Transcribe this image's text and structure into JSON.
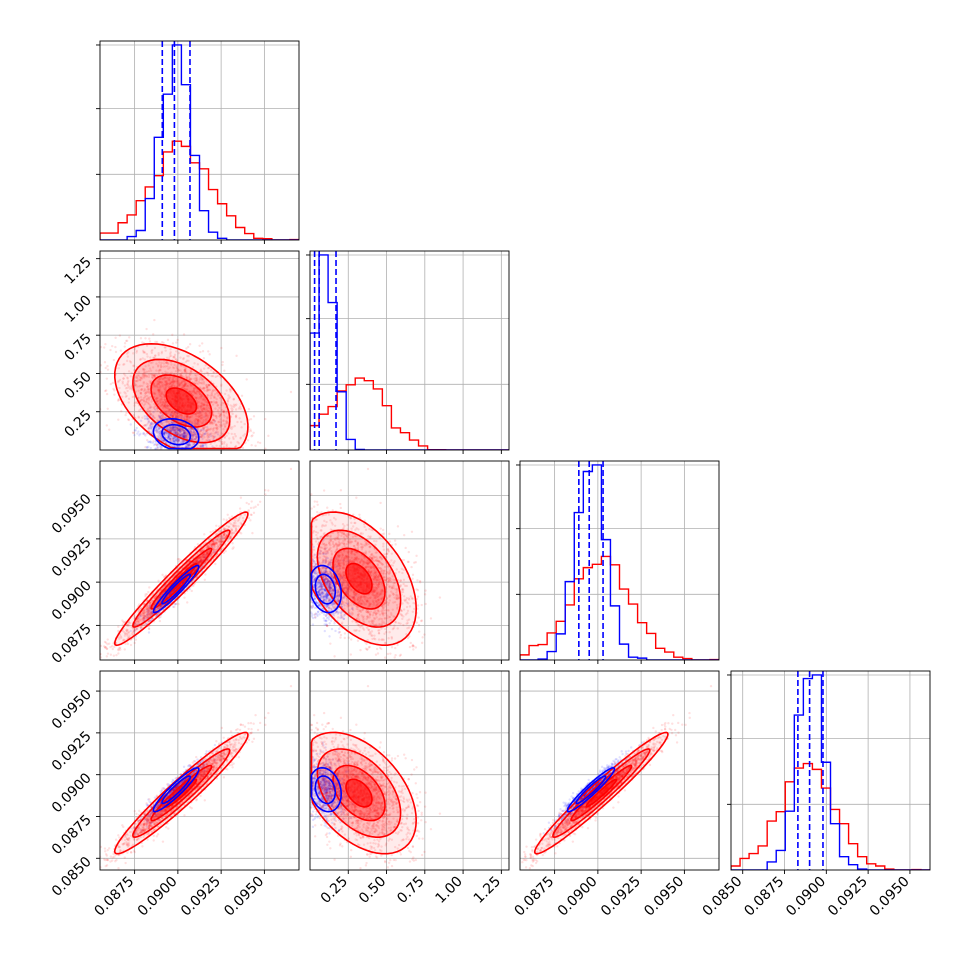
{
  "chart_data": {
    "type": "corner",
    "title": "",
    "grid": true,
    "colors": {
      "series_a": "#ff0000",
      "series_b": "#0000ff"
    },
    "params": [
      {
        "range": [
          0.0855,
          0.097
        ],
        "ticks": [
          0.0875,
          0.09,
          0.0925,
          0.095
        ],
        "tick_labels": [
          "0.0875",
          "0.0900",
          "0.0925",
          "0.0950"
        ]
      },
      {
        "range": [
          0.0,
          1.3
        ],
        "ticks": [
          0.25,
          0.5,
          0.75,
          1.0,
          1.25
        ],
        "tick_labels": [
          "0.25",
          "0.50",
          "0.75",
          "1.00",
          "1.25"
        ]
      },
      {
        "range": [
          0.0855,
          0.097
        ],
        "ticks": [
          0.0875,
          0.09,
          0.0925,
          0.095
        ],
        "tick_labels": [
          "0.0875",
          "0.0900",
          "0.0925",
          "0.0950"
        ]
      },
      {
        "range": [
          0.0843,
          0.0962
        ],
        "ticks": [
          0.085,
          0.0875,
          0.09,
          0.0925,
          0.095
        ],
        "tick_labels": [
          "0.0850",
          "0.0875",
          "0.0900",
          "0.0925",
          "0.0950"
        ]
      }
    ],
    "series": [
      {
        "color": "#ff0000",
        "mean": [
          0.0902,
          0.32,
          0.0902,
          0.0889
        ],
        "sigma": [
          0.00175,
          0.17,
          0.00175,
          0.00165
        ],
        "corr": [
          [
            1,
            -0.45,
            0.97,
            0.96
          ],
          [
            -0.45,
            1,
            -0.45,
            -0.45
          ],
          [
            0.97,
            -0.45,
            1,
            0.97
          ],
          [
            0.96,
            -0.45,
            0.97,
            1
          ]
        ],
        "credible_lines": [],
        "points": 1800
      },
      {
        "color": "#0000ff",
        "mean": [
          0.0899,
          0.1,
          0.0896,
          0.0891
        ],
        "sigma": [
          0.00082,
          0.065,
          0.00085,
          0.00082
        ],
        "corr": [
          [
            1,
            -0.2,
            0.95,
            0.93
          ],
          [
            -0.2,
            1,
            -0.2,
            -0.2
          ],
          [
            0.95,
            -0.2,
            1,
            0.95
          ],
          [
            0.93,
            -0.2,
            0.95,
            1
          ]
        ],
        "credible_lines": [
          [
            0.0891,
            0.0898,
            0.0907
          ],
          [
            0.03,
            0.06,
            0.17
          ],
          [
            0.0889,
            0.0895,
            0.0903
          ],
          [
            0.0883,
            0.089,
            0.0898
          ]
        ],
        "points": 900
      }
    ]
  }
}
